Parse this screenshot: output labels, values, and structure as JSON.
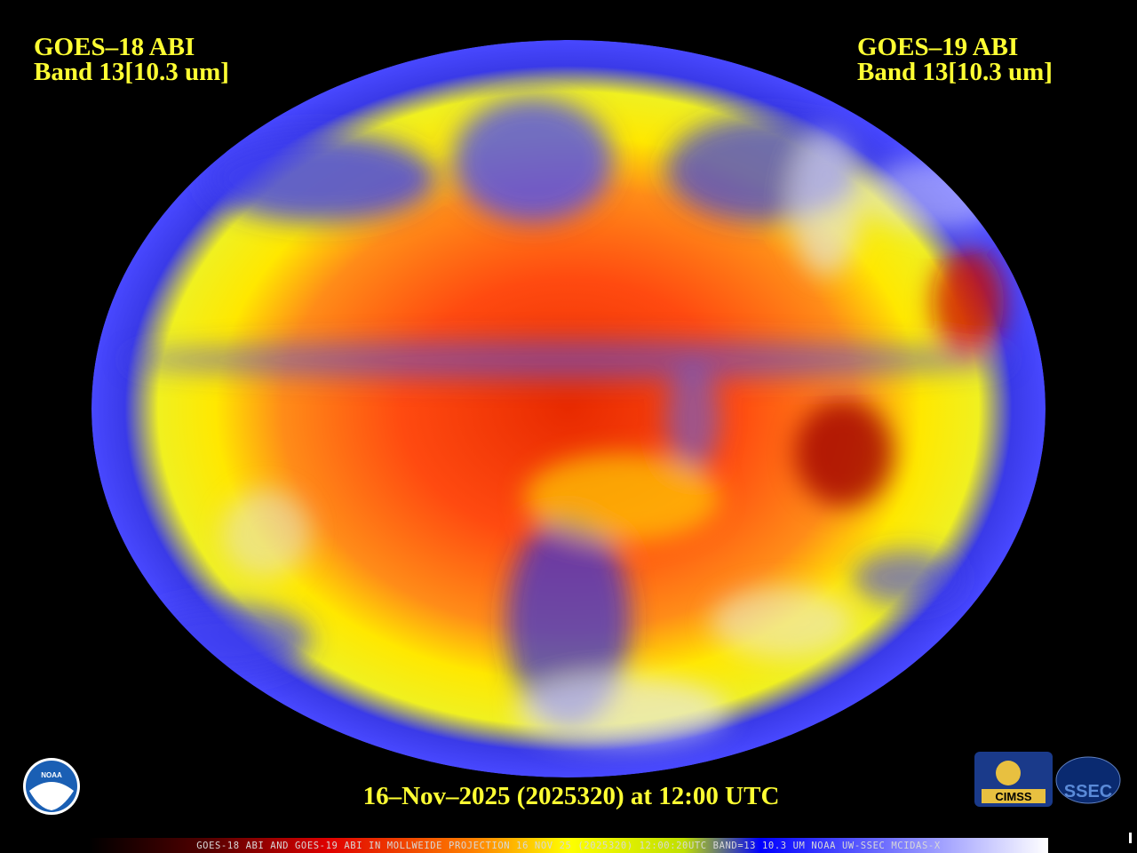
{
  "header": {
    "left": {
      "line1": "GOES–18 ABI",
      "line2": "Band 13[10.3 um]"
    },
    "right": {
      "line1": "GOES–19 ABI",
      "line2": "Band 13[10.3 um]"
    }
  },
  "timestamp": "16–Nov–2025 (2025320) at 12:00 UTC",
  "footer": "GOES-18 ABI AND GOES-19 ABI IN MOLLWEIDE PROJECTION 16 NOV 25 (2025320) 12:00:20UTC BAND=13 10.3 UM NOAA UW-SSEC MCIDAS-X",
  "logos": {
    "noaa": "NOAA",
    "cimss": "CIMSS",
    "ssec": "SSEC"
  }
}
